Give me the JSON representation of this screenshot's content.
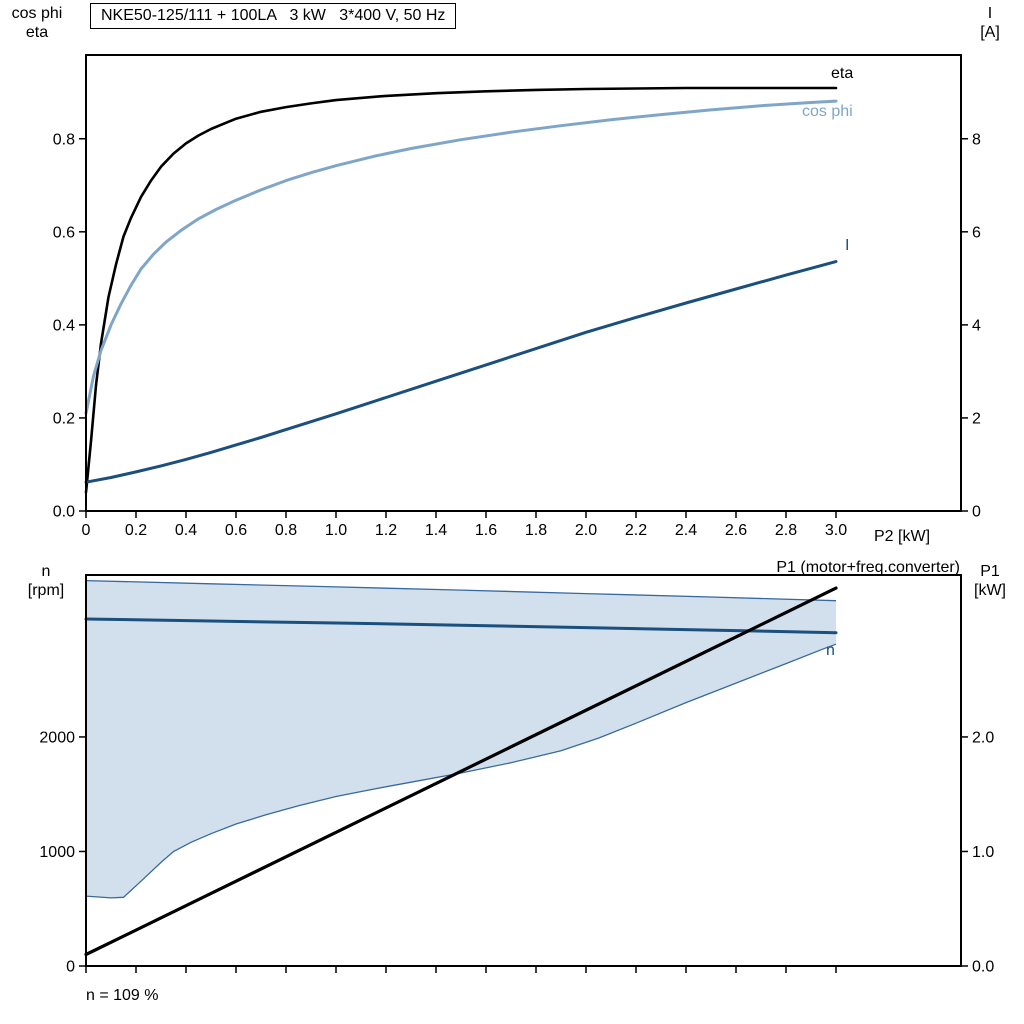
{
  "colors": {
    "black": "#000000",
    "dark_blue": "#1b4f7e",
    "light_blue": "#7fa6c8",
    "area_fill": "#cdddeb",
    "area_stroke": "#38699e"
  },
  "chart_data": [
    {
      "type": "line",
      "title": "NKE50-125/111 + 100LA   3 kW   3*400 V, 50 Hz",
      "x_label": "P2 [kW]",
      "y_left_label": {
        "line1": "cos phi",
        "line2": "eta"
      },
      "y_right_label": {
        "line1": "I",
        "line2": "[A]"
      },
      "x_range": [
        0,
        3.0
      ],
      "y_left_range": [
        0,
        0.98
      ],
      "y_right_range": [
        0,
        9.8
      ],
      "x_tick_values": [
        0,
        0.2,
        0.4,
        0.6,
        0.8,
        1.0,
        1.2,
        1.4,
        1.6,
        1.8,
        2.0,
        2.2,
        2.4,
        2.6,
        2.8,
        3.0
      ],
      "x_tick_labels": [
        "0",
        "0.2",
        "0.4",
        "0.6",
        "0.8",
        "1.0",
        "1.2",
        "1.4",
        "1.6",
        "1.8",
        "2.0",
        "2.2",
        "2.4",
        "2.6",
        "2.8",
        "3.0"
      ],
      "y_left_tick_values": [
        0,
        0.2,
        0.4,
        0.6,
        0.8
      ],
      "y_left_tick_labels": [
        "0.0",
        "0.2",
        "0.4",
        "0.6",
        "0.8"
      ],
      "y_right_tick_values": [
        0,
        2,
        4,
        6,
        8
      ],
      "y_right_tick_labels": [
        "0",
        "2",
        "4",
        "6",
        "8"
      ],
      "series": [
        {
          "name": "eta",
          "axis": "left",
          "color": "black",
          "width": 2.6,
          "points": [
            [
              0,
              0.04
            ],
            [
              0.02,
              0.15
            ],
            [
              0.04,
              0.27
            ],
            [
              0.06,
              0.36
            ],
            [
              0.09,
              0.46
            ],
            [
              0.12,
              0.53
            ],
            [
              0.15,
              0.59
            ],
            [
              0.18,
              0.63
            ],
            [
              0.22,
              0.675
            ],
            [
              0.26,
              0.71
            ],
            [
              0.3,
              0.74
            ],
            [
              0.35,
              0.768
            ],
            [
              0.4,
              0.79
            ],
            [
              0.45,
              0.807
            ],
            [
              0.5,
              0.821
            ],
            [
              0.6,
              0.843
            ],
            [
              0.7,
              0.858
            ],
            [
              0.8,
              0.868
            ],
            [
              0.9,
              0.876
            ],
            [
              1.0,
              0.883
            ],
            [
              1.2,
              0.892
            ],
            [
              1.4,
              0.898
            ],
            [
              1.6,
              0.902
            ],
            [
              1.8,
              0.905
            ],
            [
              2.0,
              0.907
            ],
            [
              2.2,
              0.908
            ],
            [
              2.4,
              0.909
            ],
            [
              2.6,
              0.909
            ],
            [
              2.8,
              0.909
            ],
            [
              3.0,
              0.909
            ]
          ]
        },
        {
          "name": "cos phi",
          "axis": "left",
          "color": "light_blue",
          "width": 3,
          "points": [
            [
              0,
              0.21
            ],
            [
              0.03,
              0.29
            ],
            [
              0.06,
              0.345
            ],
            [
              0.1,
              0.4
            ],
            [
              0.14,
              0.445
            ],
            [
              0.18,
              0.485
            ],
            [
              0.22,
              0.52
            ],
            [
              0.27,
              0.552
            ],
            [
              0.32,
              0.578
            ],
            [
              0.38,
              0.603
            ],
            [
              0.45,
              0.628
            ],
            [
              0.52,
              0.648
            ],
            [
              0.6,
              0.668
            ],
            [
              0.7,
              0.69
            ],
            [
              0.8,
              0.71
            ],
            [
              0.9,
              0.727
            ],
            [
              1.0,
              0.742
            ],
            [
              1.15,
              0.762
            ],
            [
              1.3,
              0.779
            ],
            [
              1.5,
              0.798
            ],
            [
              1.7,
              0.814
            ],
            [
              1.9,
              0.828
            ],
            [
              2.1,
              0.841
            ],
            [
              2.3,
              0.852
            ],
            [
              2.5,
              0.862
            ],
            [
              2.7,
              0.871
            ],
            [
              2.9,
              0.878
            ],
            [
              3.0,
              0.881
            ]
          ]
        },
        {
          "name": "I",
          "axis": "right",
          "color": "dark_blue",
          "width": 3,
          "points": [
            [
              0,
              0.62
            ],
            [
              0.1,
              0.72
            ],
            [
              0.2,
              0.84
            ],
            [
              0.3,
              0.97
            ],
            [
              0.4,
              1.11
            ],
            [
              0.5,
              1.26
            ],
            [
              0.6,
              1.42
            ],
            [
              0.7,
              1.58
            ],
            [
              0.8,
              1.75
            ],
            [
              0.9,
              1.92
            ],
            [
              1.0,
              2.09
            ],
            [
              1.2,
              2.44
            ],
            [
              1.4,
              2.79
            ],
            [
              1.6,
              3.14
            ],
            [
              1.8,
              3.49
            ],
            [
              2.0,
              3.84
            ],
            [
              2.2,
              4.16
            ],
            [
              2.4,
              4.47
            ],
            [
              2.6,
              4.77
            ],
            [
              2.8,
              5.07
            ],
            [
              3.0,
              5.36
            ]
          ]
        }
      ]
    },
    {
      "type": "line+area",
      "x_label": "",
      "y_left_label": {
        "line1": "n",
        "line2": "[rpm]"
      },
      "y_right_label": {
        "line1": "P1",
        "line2": "[kW]"
      },
      "x_range": [
        0,
        3.0
      ],
      "y_left_range": [
        0,
        3414
      ],
      "y_right_range": [
        0,
        3.414
      ],
      "x_tick_values": [
        0,
        0.2,
        0.4,
        0.6,
        0.8,
        1.0,
        1.2,
        1.4,
        1.6,
        1.8,
        2.0,
        2.2,
        2.4,
        2.6,
        2.8,
        3.0
      ],
      "x_tick_labels": [],
      "y_left_tick_values": [
        0,
        1000,
        2000
      ],
      "y_left_tick_labels": [
        "0",
        "1000",
        "2000"
      ],
      "y_right_tick_values": [
        0,
        1.0,
        2.0
      ],
      "y_right_tick_labels": [
        "0.0",
        "1.0",
        "2.0"
      ],
      "area": {
        "upper": [
          [
            0,
            3365
          ],
          [
            0.5,
            3337
          ],
          [
            1.0,
            3310
          ],
          [
            1.5,
            3282
          ],
          [
            2.0,
            3252
          ],
          [
            2.5,
            3222
          ],
          [
            3.0,
            3190
          ]
        ],
        "lower": [
          [
            0,
            610
          ],
          [
            0.1,
            595
          ],
          [
            0.15,
            600
          ],
          [
            0.22,
            740
          ],
          [
            0.3,
            905
          ],
          [
            0.35,
            1000
          ],
          [
            0.42,
            1080
          ],
          [
            0.5,
            1155
          ],
          [
            0.6,
            1240
          ],
          [
            0.72,
            1320
          ],
          [
            0.85,
            1400
          ],
          [
            1.0,
            1480
          ],
          [
            1.15,
            1545
          ],
          [
            1.3,
            1605
          ],
          [
            1.5,
            1685
          ],
          [
            1.7,
            1775
          ],
          [
            1.9,
            1880
          ],
          [
            2.05,
            1990
          ],
          [
            2.2,
            2120
          ],
          [
            2.4,
            2300
          ],
          [
            2.6,
            2470
          ],
          [
            2.8,
            2640
          ],
          [
            2.95,
            2770
          ],
          [
            3.0,
            2810
          ]
        ]
      },
      "series": [
        {
          "name": "n",
          "axis": "left",
          "color": "dark_blue",
          "width": 3,
          "points": [
            [
              0,
              3030
            ],
            [
              0.5,
              3012
            ],
            [
              1.0,
              2995
            ],
            [
              1.5,
              2976
            ],
            [
              2.0,
              2955
            ],
            [
              2.5,
              2933
            ],
            [
              3.0,
              2910
            ]
          ]
        },
        {
          "name": "P1",
          "axis": "right",
          "color": "black",
          "width": 3.2,
          "points": [
            [
              0,
              0.1
            ],
            [
              1.5,
              1.7
            ],
            [
              3.0,
              3.3
            ]
          ]
        }
      ],
      "annotations": {
        "p1_label": "P1 (motor+freq.converter)",
        "speed_note": "n = 109 %"
      }
    }
  ]
}
